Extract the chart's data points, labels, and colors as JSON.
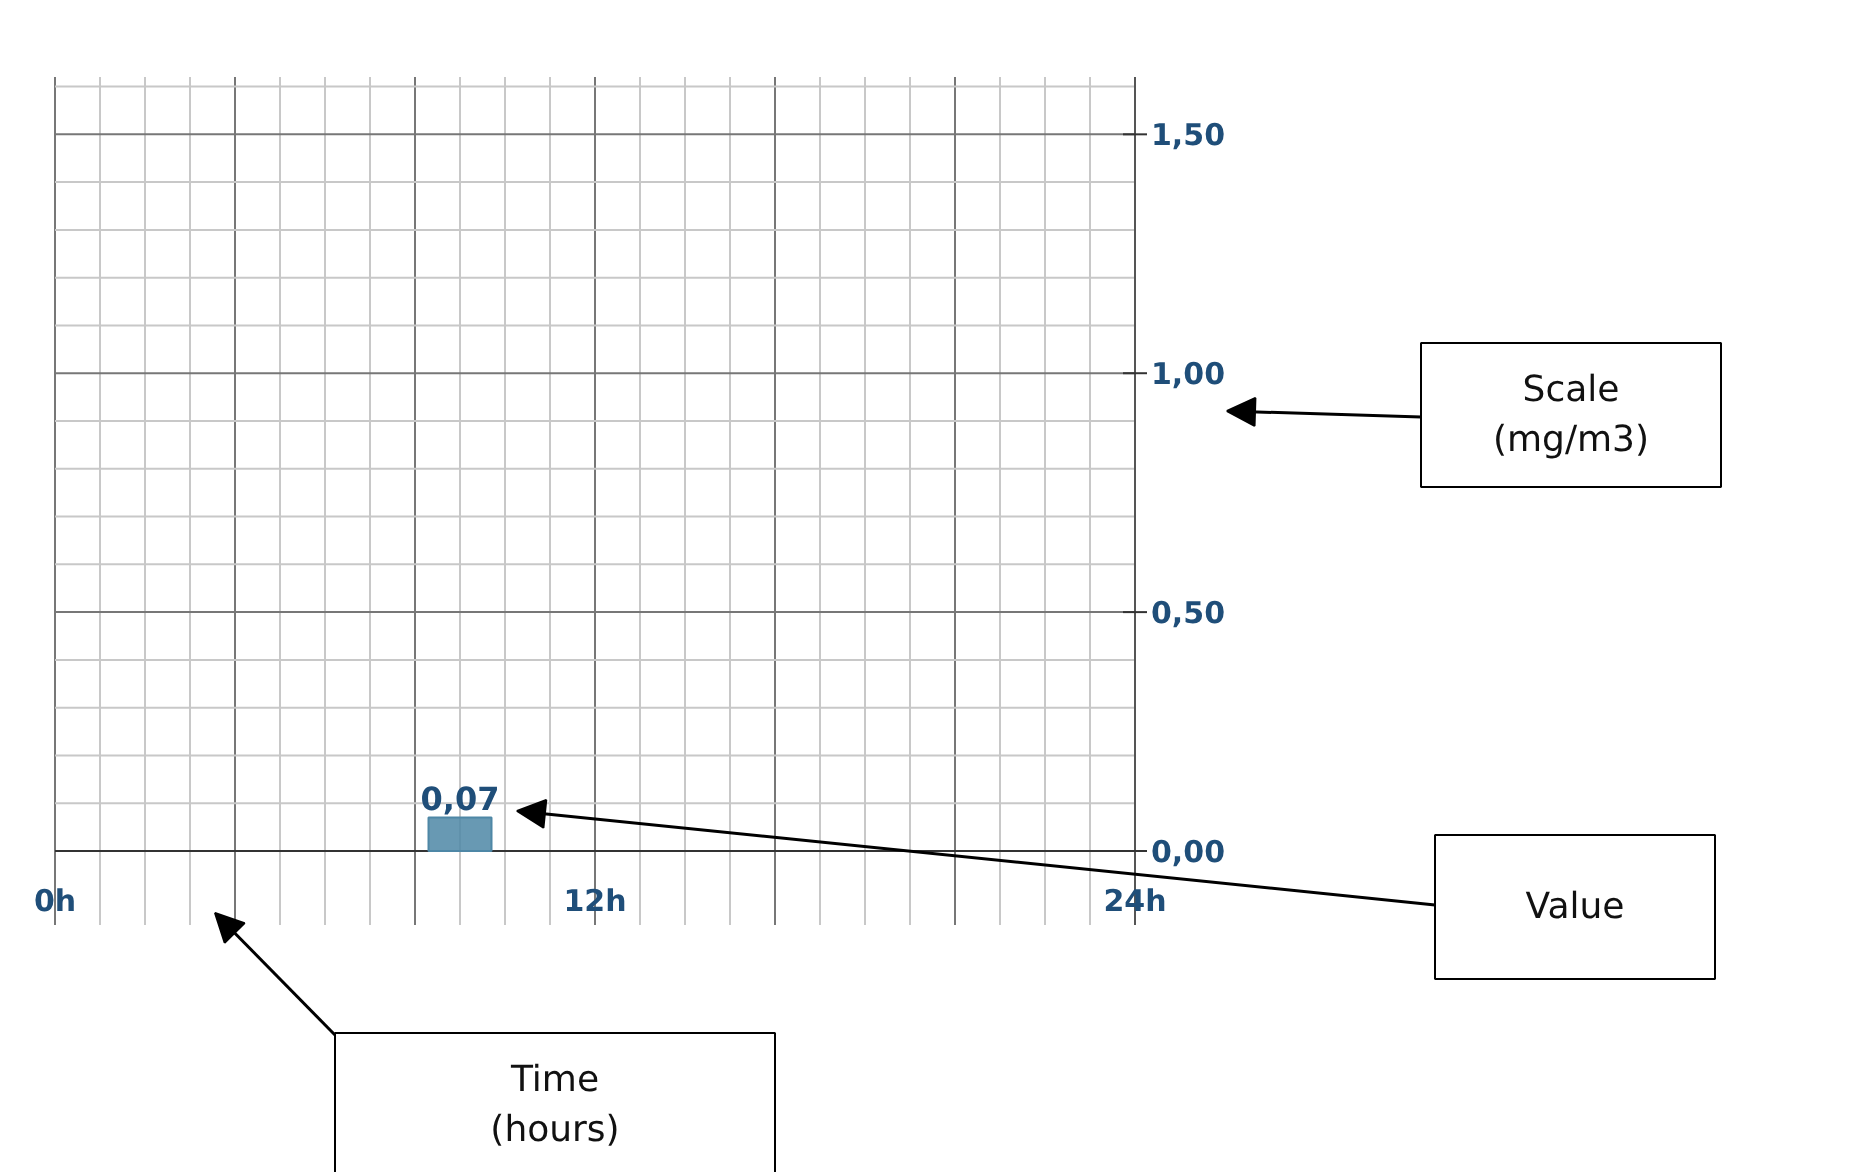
{
  "chart_data": {
    "type": "bar",
    "x": [
      9
    ],
    "values": [
      0.07
    ],
    "value_labels": [
      "0,07"
    ],
    "color": "#4e87a6",
    "xlim": [
      0,
      24
    ],
    "xticks": [
      {
        "value": 0,
        "label": "0h"
      },
      {
        "value": 4,
        "label": null
      },
      {
        "value": 8,
        "label": null
      },
      {
        "value": 12,
        "label": "12h"
      },
      {
        "value": 16,
        "label": null
      },
      {
        "value": 20,
        "label": null
      },
      {
        "value": 24,
        "label": "24h"
      }
    ],
    "ylim": [
      0,
      1.62
    ],
    "yticks": [
      {
        "value": 0,
        "label": "0,00"
      },
      {
        "value": 0.5,
        "label": "0,50"
      },
      {
        "value": 1.0,
        "label": "1,00"
      },
      {
        "value": 1.5,
        "label": "1,50"
      }
    ],
    "grid": true,
    "annotations": [
      "Scale\n(mg/m3)",
      "Value",
      "Time\n(hours)"
    ]
  }
}
